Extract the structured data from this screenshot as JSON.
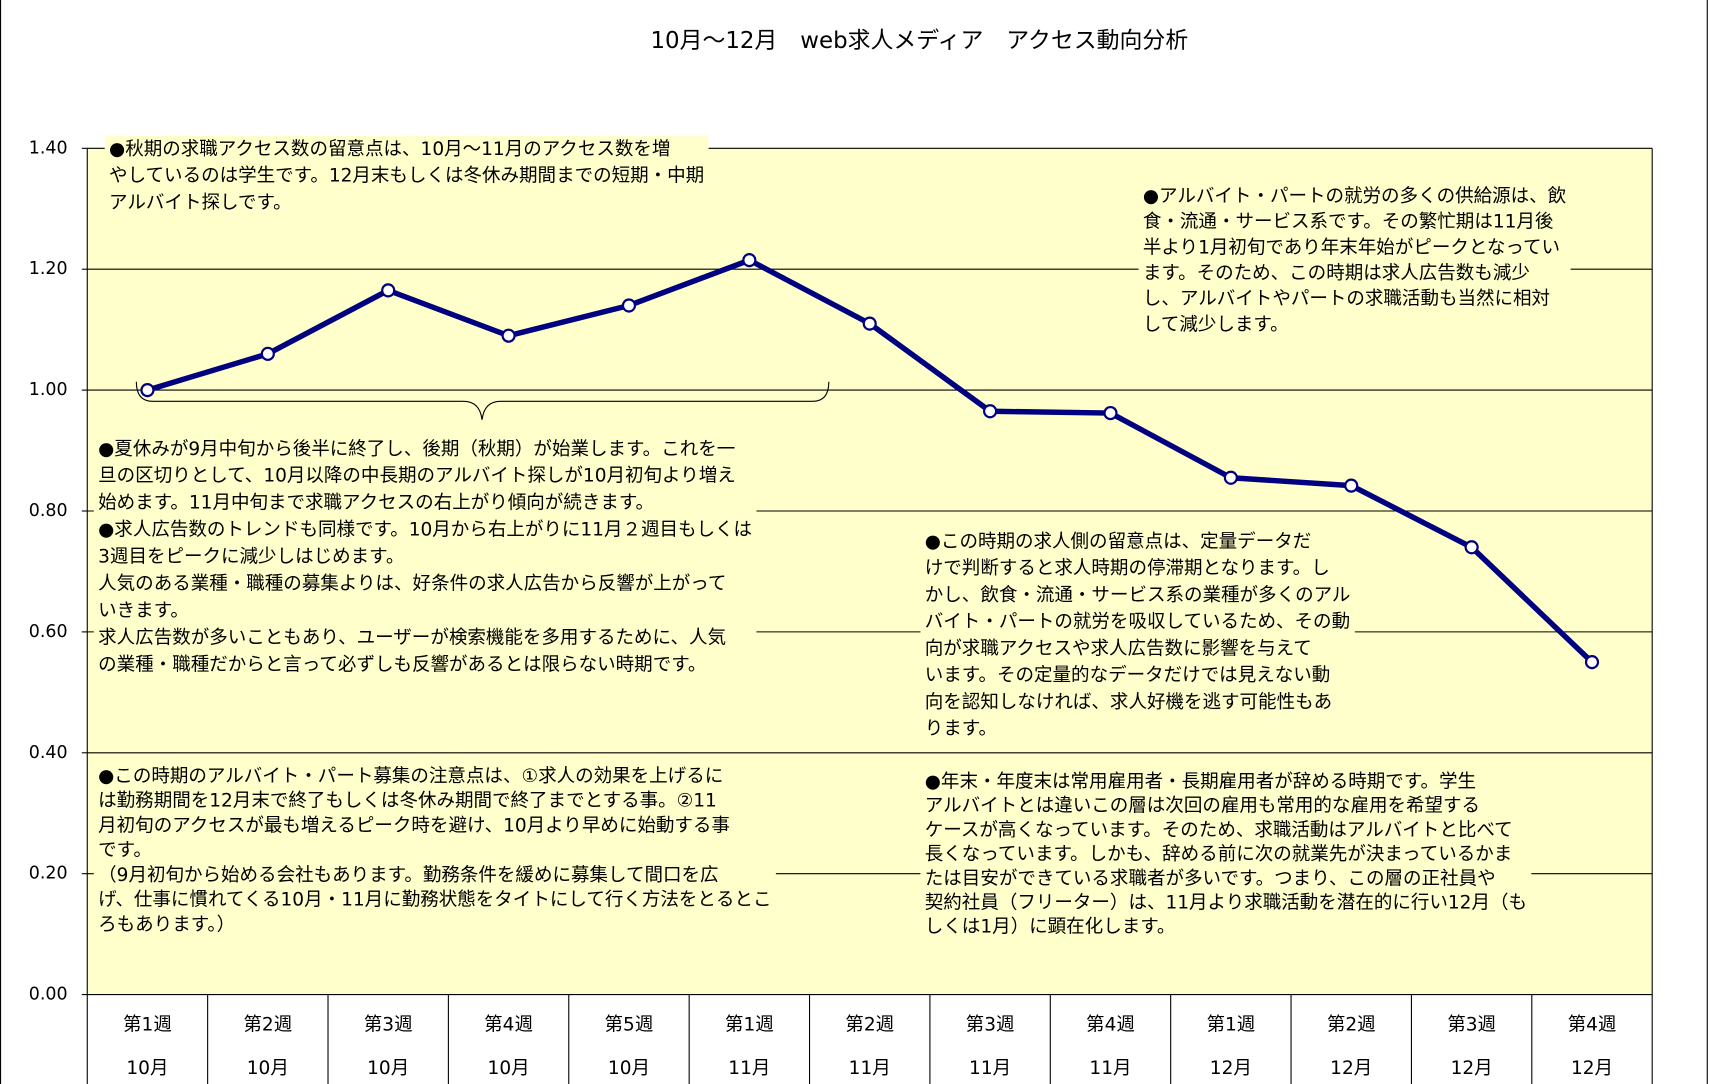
{
  "chart_data": {
    "type": "line",
    "title": "10月～12月　web求人メディア　アクセス動向分析",
    "categories": [
      [
        "第1週",
        "10月"
      ],
      [
        "第2週",
        "10月"
      ],
      [
        "第3週",
        "10月"
      ],
      [
        "第4週",
        "10月"
      ],
      [
        "第5週",
        "10月"
      ],
      [
        "第1週",
        "11月"
      ],
      [
        "第2週",
        "11月"
      ],
      [
        "第3週",
        "11月"
      ],
      [
        "第4週",
        "11月"
      ],
      [
        "第1週",
        "12月"
      ],
      [
        "第2週",
        "12月"
      ],
      [
        "第3週",
        "12月"
      ],
      [
        "第4週",
        "12月"
      ]
    ],
    "values": [
      1.0,
      1.06,
      1.165,
      1.09,
      1.14,
      1.215,
      1.11,
      0.965,
      0.962,
      0.855,
      0.842,
      0.74,
      0.55
    ],
    "color": "#000080",
    "ylim": [
      0,
      1.4
    ],
    "yticks": [
      {
        "value": 0,
        "label": "0.00"
      },
      {
        "value": 0.2,
        "label": "0.20"
      },
      {
        "value": 0.4,
        "label": "0.40"
      },
      {
        "value": 0.6,
        "label": "0.60"
      },
      {
        "value": 0.8,
        "label": "0.80"
      },
      {
        "value": 1.0,
        "label": "1.00"
      },
      {
        "value": 1.2,
        "label": "1.20"
      },
      {
        "value": 1.4,
        "label": "1.40"
      }
    ],
    "grid": true,
    "annotations": [
      [
        "●秋期の求職アクセス数の留意点は、10月～11月のアクセス数を増",
        "やしているのは学生です。12月末もしくは冬休み期間までの短期・中期",
        "アルバイト探しです。"
      ],
      [
        "●アルバイト・パートの就労の多くの供給源は、飲",
        "食・流通・サービス系です。その繁忙期は11月後",
        "半より1月初旬であり年末年始がピークとなってい",
        "ます。そのため、この時期は求人広告数も減少",
        "し、アルバイトやパートの求職活動も当然に相対",
        "して減少します。"
      ],
      [
        "●夏休みが9月中旬から後半に終了し、後期（秋期）が始業します。これを一",
        "旦の区切りとして、10月以降の中長期のアルバイト探しが10月初旬より増え",
        "始めます。11月中旬まで求職アクセスの右上がり傾向が続きます。",
        "●求人広告数のトレンドも同様です。10月から右上がりに11月２週目もしくは",
        "3週目をピークに減少しはじめます。",
        "人気のある業種・職種の募集よりは、好条件の求人広告から反響が上がって",
        "いきます。",
        "求人広告数が多いこともあり、ユーザーが検索機能を多用するために、人気",
        "の業種・職種だからと言って必ずしも反響があるとは限らない時期です。"
      ],
      [
        "●この時期の求人側の留意点は、定量データだ",
        "けで判断すると求人時期の停滞期となります。し",
        "かし、飲食・流通・サービス系の業種が多くのアル",
        "バイト・パートの就労を吸収しているため、その動",
        "向が求職アクセスや求人広告数に影響を与えて",
        "います。その定量的なデータだけでは見えない動",
        "向を認知しなければ、求人好機を逃す可能性もあ",
        "ります。"
      ],
      [
        "●この時期のアルバイト・パート募集の注意点は、①求人の効果を上げるに",
        "は勤務期間を12月末で終了もしくは冬休み期間で終了までとする事。②11",
        "月初旬のアクセスが最も増えるピーク時を避け、10月より早めに始動する事",
        "です。",
        "（9月初旬から始める会社もあります。勤務条件を緩めに募集して間口を広",
        "げ、仕事に慣れてくる10月・11月に勤務状態をタイトにして行く方法をとるとこ",
        "ろもあります。）"
      ],
      [
        "●年末・年度末は常用雇用者・長期雇用者が辞める時期です。学生",
        "アルバイトとは違いこの層は次回の雇用も常用的な雇用を希望する",
        "ケースが高くなっています。そのため、求職活動はアルバイトと比べて",
        "長くなっています。しかも、辞める前に次の就業先が決まっているかま",
        "たは目安ができている求職者が多いです。つまり、この層の正社員や",
        "契約社員（フリーター）は、11月より求職活動を潜在的に行い12月（も",
        "しくは1月）に顕在化します。"
      ]
    ]
  }
}
